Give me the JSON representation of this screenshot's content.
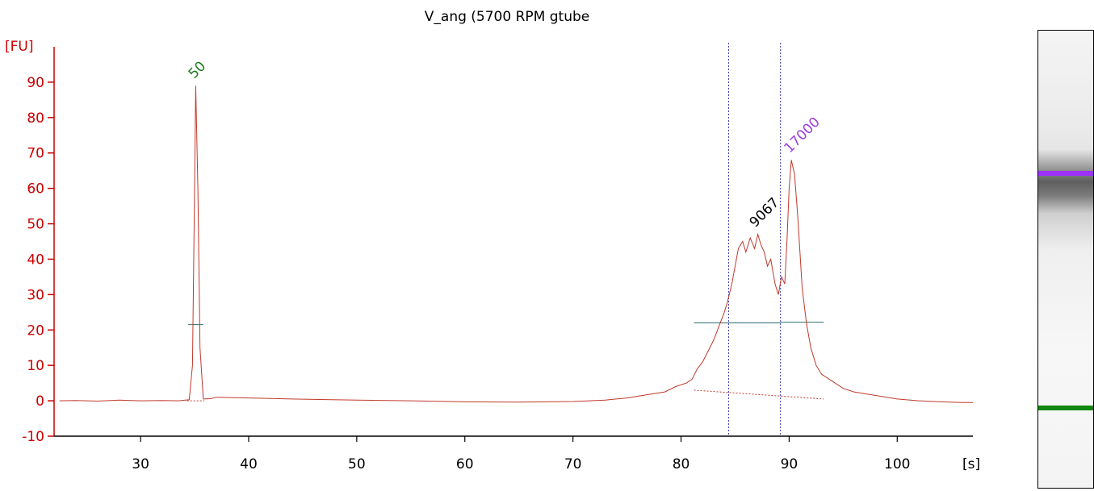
{
  "chart_data": {
    "type": "line",
    "title": "V_ang (5700 RPM gtube",
    "ylabel": "[FU]",
    "xlabel": "[s]",
    "xlim": [
      22,
      107
    ],
    "ylim": [
      -10,
      100
    ],
    "x_ticks": [
      30,
      40,
      50,
      60,
      70,
      80,
      90,
      100
    ],
    "y_ticks": [
      -10,
      0,
      10,
      20,
      30,
      40,
      50,
      60,
      70,
      80,
      90
    ],
    "grid": false,
    "series": [
      {
        "color": "#c0392b",
        "points": [
          [
            22.5,
            0
          ],
          [
            24,
            0.1
          ],
          [
            26,
            -0.1
          ],
          [
            28,
            0.2
          ],
          [
            30,
            0
          ],
          [
            32,
            0.1
          ],
          [
            33.5,
            0
          ],
          [
            34.5,
            0.3
          ],
          [
            34.8,
            10
          ],
          [
            35.0,
            60
          ],
          [
            35.1,
            89
          ],
          [
            35.3,
            60
          ],
          [
            35.5,
            15
          ],
          [
            35.8,
            0.5
          ],
          [
            36.5,
            0.6
          ],
          [
            37,
            1
          ],
          [
            40,
            0.8
          ],
          [
            44,
            0.5
          ],
          [
            50,
            0.2
          ],
          [
            55,
            0
          ],
          [
            60,
            -0.3
          ],
          [
            65,
            -0.4
          ],
          [
            70,
            -0.2
          ],
          [
            73,
            0.2
          ],
          [
            75,
            0.8
          ],
          [
            77,
            1.8
          ],
          [
            78.5,
            2.5
          ],
          [
            79.5,
            4
          ],
          [
            80.5,
            5
          ],
          [
            81,
            6
          ],
          [
            81.5,
            9
          ],
          [
            82,
            11
          ],
          [
            82.5,
            14
          ],
          [
            83,
            17
          ],
          [
            83.5,
            21
          ],
          [
            84,
            25
          ],
          [
            84.3,
            28
          ],
          [
            84.7,
            33
          ],
          [
            85,
            38
          ],
          [
            85.3,
            43
          ],
          [
            85.7,
            45
          ],
          [
            86,
            42
          ],
          [
            86.4,
            46
          ],
          [
            86.8,
            43
          ],
          [
            87.1,
            47
          ],
          [
            87.4,
            44
          ],
          [
            87.7,
            42
          ],
          [
            88,
            38
          ],
          [
            88.3,
            40
          ],
          [
            88.7,
            33
          ],
          [
            89,
            30
          ],
          [
            89.3,
            35
          ],
          [
            89.6,
            33
          ],
          [
            89.8,
            45
          ],
          [
            90,
            60
          ],
          [
            90.2,
            68
          ],
          [
            90.5,
            64
          ],
          [
            90.8,
            52
          ],
          [
            91.2,
            32
          ],
          [
            91.6,
            22
          ],
          [
            92,
            15
          ],
          [
            92.5,
            10
          ],
          [
            93,
            7.5
          ],
          [
            94,
            5.5
          ],
          [
            95,
            3.5
          ],
          [
            96,
            2.5
          ],
          [
            98,
            1.5
          ],
          [
            100,
            0.5
          ],
          [
            102,
            0
          ],
          [
            104,
            -0.3
          ],
          [
            106,
            -0.5
          ],
          [
            107,
            -0.5
          ]
        ]
      }
    ],
    "peaks": [
      {
        "label": "50",
        "x": 35.1,
        "y": 89,
        "color": "#1e7b1e"
      },
      {
        "label": "9067",
        "x": 87.0,
        "y": 47,
        "color": "#000000"
      },
      {
        "label": "17000",
        "x": 90.2,
        "y": 68,
        "color": "#9b3fe0"
      }
    ],
    "markers": {
      "vlines": [
        84.4,
        89.2
      ],
      "half_height_segments": [
        {
          "x1": 34.4,
          "x2": 35.8,
          "y": 21.5
        },
        {
          "x1": 81.2,
          "x2": 89.2,
          "y": 22
        },
        {
          "x1": 89.2,
          "x2": 93.2,
          "y": 22.2
        }
      ],
      "baseline_segments": [
        {
          "x1": 34.3,
          "x2": 35.9,
          "y1": 0,
          "y2": 0
        },
        {
          "x1": 81.2,
          "x2": 93.2,
          "y1": 3,
          "y2": 0.5
        }
      ]
    },
    "gel_bands": [
      {
        "name": "upper-marker",
        "color": "#9b30ff"
      },
      {
        "name": "lower-marker",
        "color": "#118811"
      }
    ]
  }
}
